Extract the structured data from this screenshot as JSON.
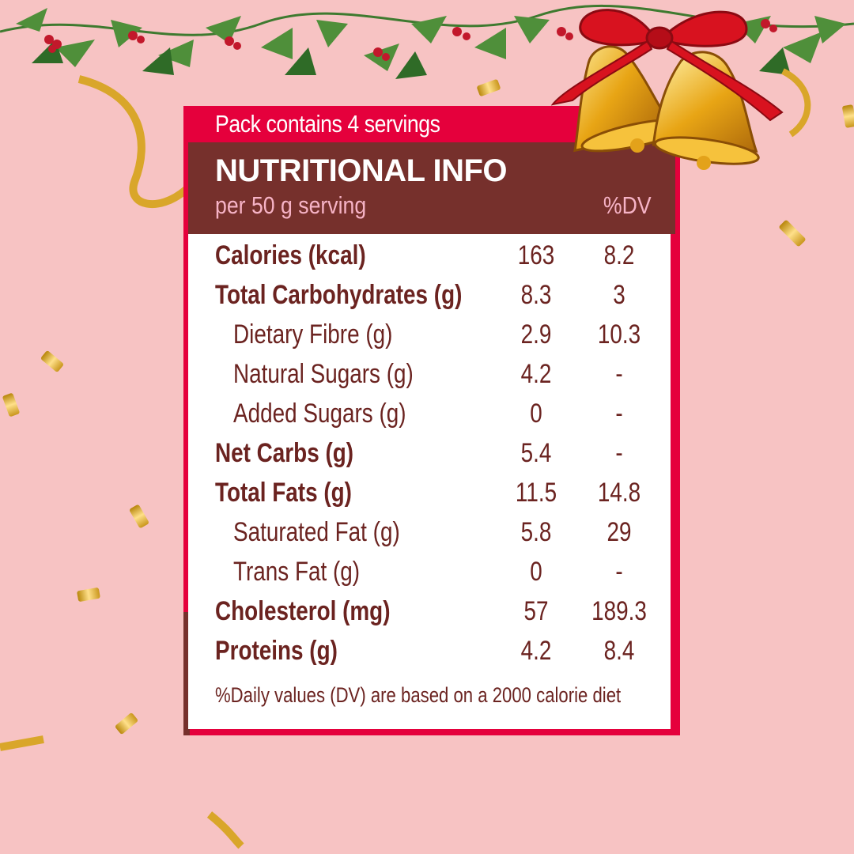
{
  "label": {
    "pack_text": "Pack contains 4 servings",
    "title": "NUTRITIONAL INFO",
    "serving": "per 50 g serving",
    "dv_header": "%DV",
    "rows": [
      {
        "name": "Calories (kcal)",
        "amount": "163",
        "dv": "8.2"
      },
      {
        "name": "Total Carbohydrates (g)",
        "amount": "8.3",
        "dv": "3"
      },
      {
        "name": "Dietary Fibre (g)",
        "amount": "2.9",
        "dv": "10.3"
      },
      {
        "name": "Natural Sugars (g)",
        "amount": "4.2",
        "dv": "-"
      },
      {
        "name": "Added Sugars (g)",
        "amount": "0",
        "dv": "-"
      },
      {
        "name": "Net Carbs (g)",
        "amount": "5.4",
        "dv": "-"
      },
      {
        "name": "Total Fats (g)",
        "amount": "11.5",
        "dv": "14.8"
      },
      {
        "name": "Saturated Fat (g)",
        "amount": "5.8",
        "dv": "29"
      },
      {
        "name": "Trans Fat (g)",
        "amount": "0",
        "dv": "-"
      },
      {
        "name": "Cholesterol (mg)",
        "amount": "57",
        "dv": "189.3"
      },
      {
        "name": "Proteins (g)",
        "amount": "4.2",
        "dv": "8.4"
      }
    ],
    "footnote": "%Daily values (DV) are based on a 2000 calorie diet"
  },
  "decor": {
    "garland_icon": "holly-garland-icon",
    "bells_icon": "christmas-bells-icon",
    "confetti_icon": "gold-confetti-icon"
  },
  "colors": {
    "background": "#f7c3c3",
    "label_red": "#e5003c",
    "header_brown": "#76302c",
    "text_brown": "#6b2320",
    "dv_pink": "#f6b3c6"
  }
}
